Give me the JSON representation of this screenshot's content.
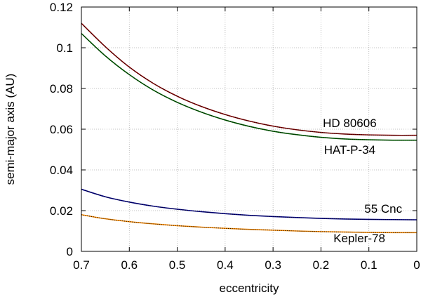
{
  "chart_data": {
    "type": "line",
    "title": "",
    "xlabel": "eccentricity",
    "ylabel": "semi-major axis (AU)",
    "xlim": [
      0.7,
      0
    ],
    "ylim": [
      0,
      0.12
    ],
    "x_reversed": true,
    "grid": true,
    "x_ticks": [
      0.7,
      0.6,
      0.5,
      0.4,
      0.3,
      0.2,
      0.1,
      0
    ],
    "x_tick_labels": [
      "0.7",
      "0.6",
      "0.5",
      "0.4",
      "0.3",
      "0.2",
      "0.1",
      "0"
    ],
    "y_ticks": [
      0,
      0.02,
      0.04,
      0.06,
      0.08,
      0.1,
      0.12
    ],
    "y_tick_labels": [
      "0",
      "0.02",
      "0.04",
      "0.06",
      "0.08",
      "0.1",
      "0.12"
    ],
    "x": [
      0.7,
      0.65,
      0.6,
      0.55,
      0.5,
      0.45,
      0.4,
      0.35,
      0.3,
      0.25,
      0.2,
      0.15,
      0.1,
      0.05,
      0
    ],
    "series": [
      {
        "name": "HD 80606",
        "color": "#8b0000",
        "label_anchor": [
          0.14,
          0.061
        ],
        "values": [
          0.112,
          0.1005,
          0.0905,
          0.0825,
          0.0762,
          0.0712,
          0.0672,
          0.064,
          0.0615,
          0.0597,
          0.0584,
          0.0576,
          0.0572,
          0.057,
          0.057
        ]
      },
      {
        "name": "HAT-P-34",
        "color": "#006400",
        "label_anchor": [
          0.14,
          0.048
        ],
        "values": [
          0.107,
          0.096,
          0.0868,
          0.0792,
          0.0732,
          0.0684,
          0.0645,
          0.0614,
          0.059,
          0.0573,
          0.056,
          0.0552,
          0.0548,
          0.0546,
          0.0546
        ]
      },
      {
        "name": "55 Cnc",
        "color": "#00008b",
        "label_anchor": [
          0.07,
          0.019
        ],
        "values": [
          0.0305,
          0.0268,
          0.0242,
          0.0222,
          0.0207,
          0.0195,
          0.0185,
          0.0177,
          0.0171,
          0.0166,
          0.0162,
          0.0159,
          0.0157,
          0.0156,
          0.0155
        ]
      },
      {
        "name": "Kepler-78",
        "color": "#ff8c00",
        "label_anchor": [
          0.12,
          0.0045
        ],
        "values": [
          0.018,
          0.016,
          0.0146,
          0.0135,
          0.0126,
          0.0119,
          0.0113,
          0.0108,
          0.0104,
          0.01,
          0.0097,
          0.0095,
          0.0093,
          0.0092,
          0.0092
        ]
      }
    ]
  }
}
